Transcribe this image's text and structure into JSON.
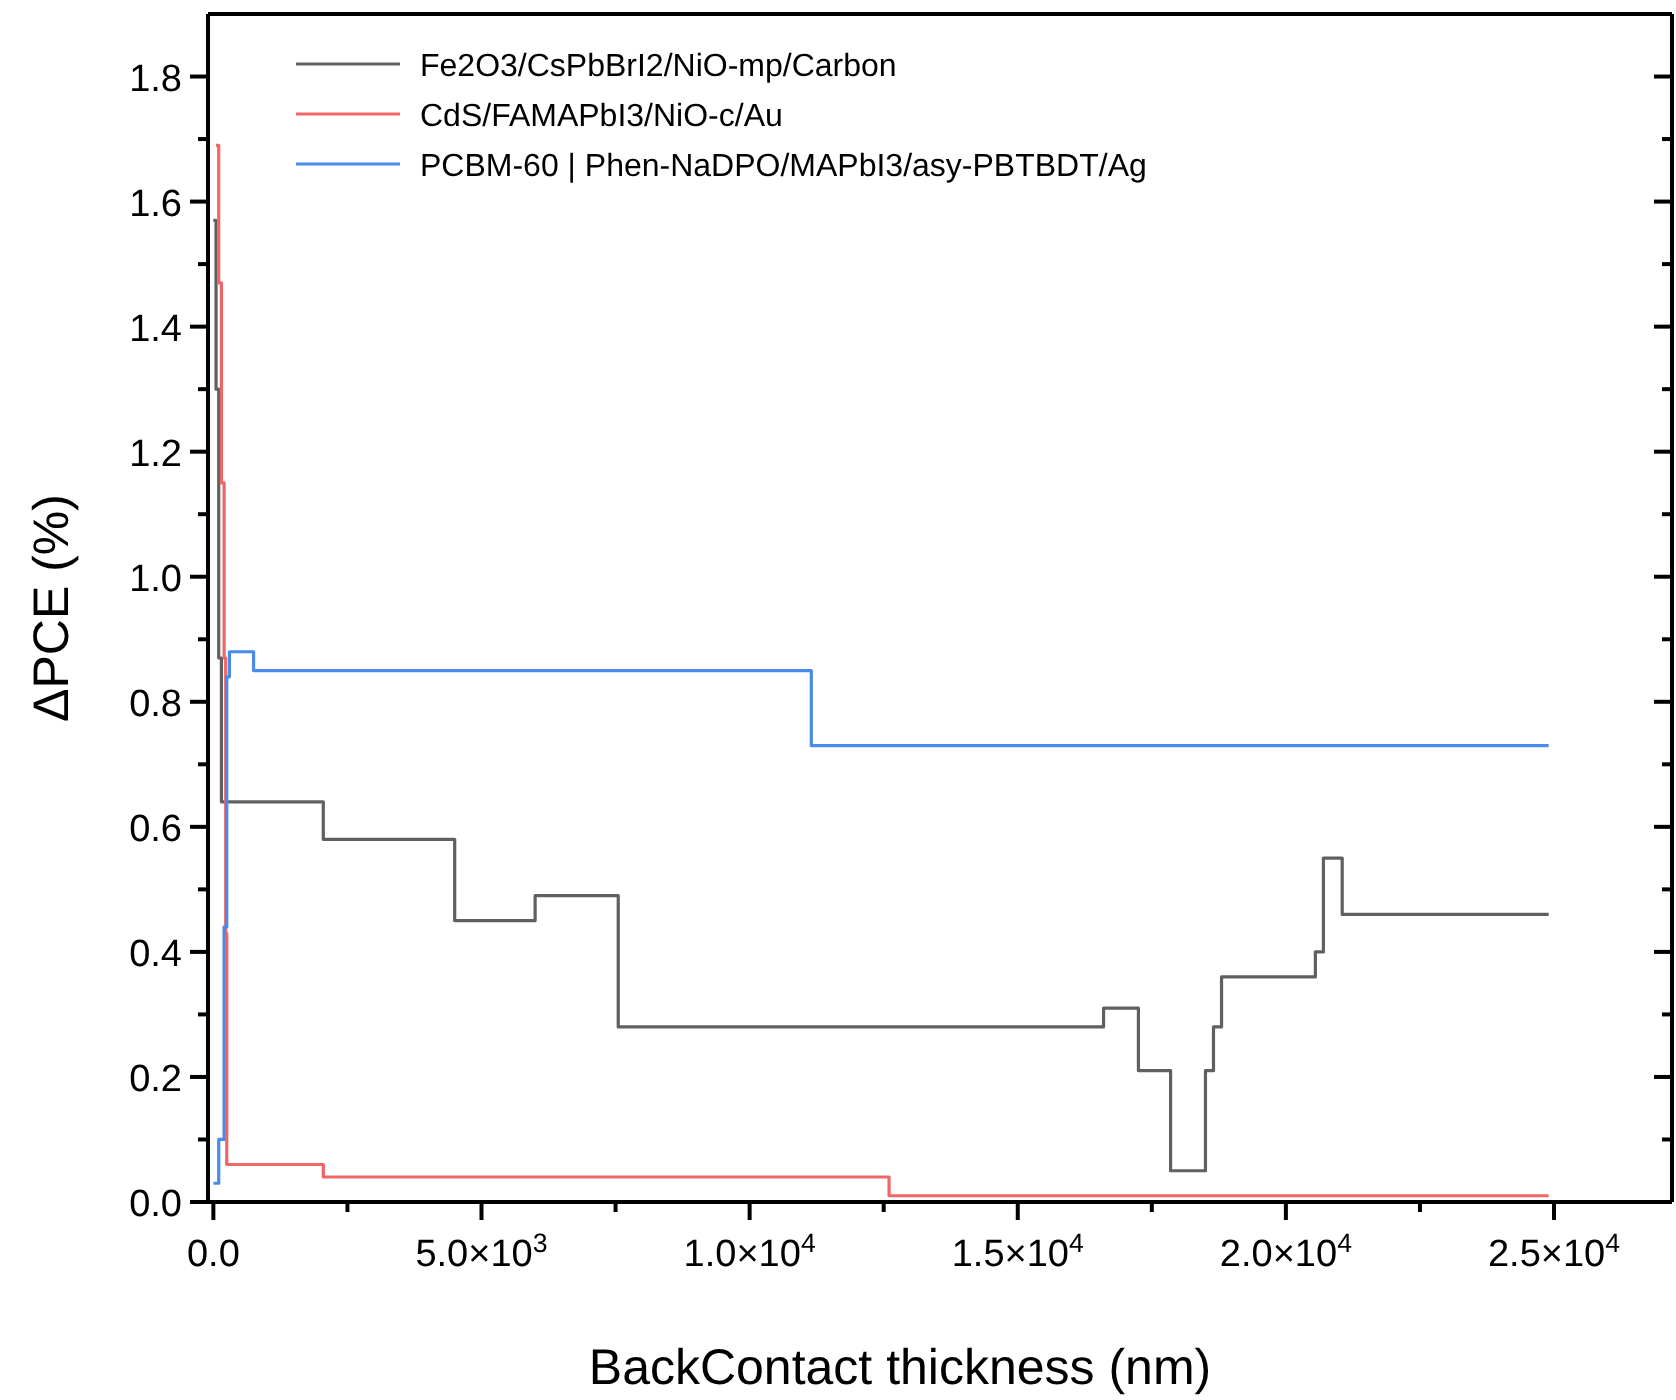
{
  "chart_data": {
    "type": "step",
    "xlabel": "BackContact thickness (nm)",
    "ylabel": "ΔPCE (%)",
    "xlim": [
      -100,
      27200
    ],
    "ylim": [
      0,
      1.9
    ],
    "xticks": [
      {
        "value": 0,
        "label": "0.0"
      },
      {
        "value": 2500,
        "label": null
      },
      {
        "value": 5000,
        "label": "5.0×10$^{3}$"
      },
      {
        "value": 7500,
        "label": null
      },
      {
        "value": 10000,
        "label": "1.0×10$^{4}$"
      },
      {
        "value": 12500,
        "label": null
      },
      {
        "value": 15000,
        "label": "1.5×10$^{4}$"
      },
      {
        "value": 17500,
        "label": null
      },
      {
        "value": 20000,
        "label": "2.0×10$^{4}$"
      },
      {
        "value": 22500,
        "label": null
      },
      {
        "value": 25000,
        "label": "2.5×10$^{4}$"
      }
    ],
    "yticks": [
      {
        "value": 0,
        "label": "0.0"
      },
      {
        "value": 0.1,
        "label": null
      },
      {
        "value": 0.2,
        "label": "0.2"
      },
      {
        "value": 0.3,
        "label": null
      },
      {
        "value": 0.4,
        "label": "0.4"
      },
      {
        "value": 0.5,
        "label": null
      },
      {
        "value": 0.6,
        "label": "0.6"
      },
      {
        "value": 0.7,
        "label": null
      },
      {
        "value": 0.8,
        "label": "0.8"
      },
      {
        "value": 0.9,
        "label": null
      },
      {
        "value": 1.0,
        "label": "1.0"
      },
      {
        "value": 1.1,
        "label": null
      },
      {
        "value": 1.2,
        "label": "1.2"
      },
      {
        "value": 1.3,
        "label": null
      },
      {
        "value": 1.4,
        "label": "1.4"
      },
      {
        "value": 1.5,
        "label": null
      },
      {
        "value": 1.6,
        "label": "1.6"
      },
      {
        "value": 1.7,
        "label": null
      },
      {
        "value": 1.8,
        "label": "1.8"
      }
    ],
    "grid": false,
    "legend": "top left",
    "marker": "none",
    "line_style": "solid",
    "series": [
      {
        "name": "Fe2O3/CsPbBrI2/NiO-mp/Carbon",
        "color": "#606060",
        "x": [
          0,
          50,
          100,
          150,
          2050,
          4500,
          6000,
          7550,
          16600,
          17250,
          17850,
          18500,
          18650,
          18800,
          20550,
          20700,
          21050,
          24900
        ],
        "values": [
          1.57,
          1.3,
          0.87,
          0.64,
          0.58,
          0.45,
          0.49,
          0.28,
          0.31,
          0.21,
          0.05,
          0.21,
          0.28,
          0.36,
          0.4,
          0.55,
          0.46,
          0.46
        ]
      },
      {
        "name": "CdS/FAMAPbI3/NiO-c/Au",
        "color": "#f06666",
        "x": [
          50,
          100,
          150,
          200,
          230,
          250,
          2050,
          12600,
          24900
        ],
        "values": [
          1.69,
          1.47,
          1.15,
          0.87,
          0.43,
          0.06,
          0.04,
          0.01,
          0.01
        ]
      },
      {
        "name": "PCBM-60 | Phen-NaDPO/MAPbI3/asy-PBTBDT/Ag",
        "color": "#4a8ae8",
        "x": [
          0,
          100,
          200,
          250,
          300,
          750,
          11150,
          24900
        ],
        "values": [
          0.03,
          0.1,
          0.44,
          0.84,
          0.88,
          0.85,
          0.73,
          0.73
        ]
      }
    ]
  }
}
